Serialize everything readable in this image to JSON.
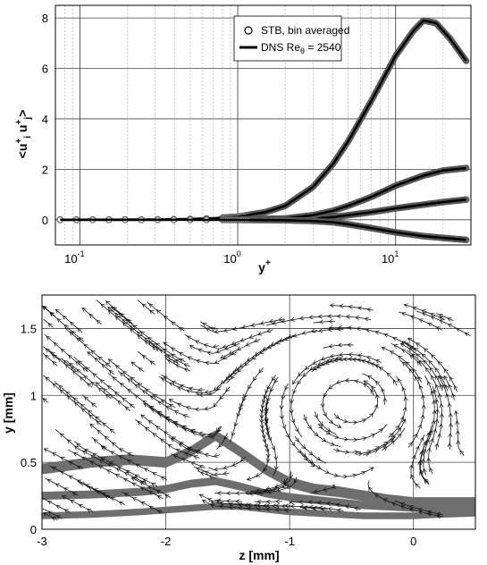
{
  "chart_data": [
    {
      "type": "scatter",
      "xlabel_base": "y",
      "xlabel_sup": "+",
      "ylabel": "<u_i^+ u_j^+>",
      "x_scale": "log",
      "xlim": [
        0.07,
        30
      ],
      "ylim": [
        -1,
        8.5
      ],
      "x_tick_values": [
        0.1,
        1,
        10
      ],
      "x_tick_labels": [
        "10",
        "10",
        "10"
      ],
      "x_tick_exponents": [
        "-1",
        "0",
        "1"
      ],
      "y_ticks": [
        0,
        2,
        4,
        6,
        8
      ],
      "y_tick_labels": [
        "0",
        "2",
        "4",
        "6",
        "8"
      ],
      "grid": true,
      "legend_position": "top-right",
      "legend": [
        {
          "label": "STB, bin averaged",
          "marker": "circle"
        },
        {
          "label_main": "DNS Re",
          "label_sub": "θ",
          "label_rest": " = 2540",
          "marker": "line"
        }
      ],
      "series": [
        {
          "key": "uu",
          "x": [
            0.075,
            0.15,
            0.23,
            0.3,
            0.4,
            0.5,
            0.7,
            1,
            1.5,
            2,
            3,
            4,
            5,
            7,
            10,
            13,
            15,
            18,
            22,
            28
          ],
          "y": [
            0,
            0.003,
            0.007,
            0.01,
            0.02,
            0.03,
            0.06,
            0.12,
            0.3,
            0.55,
            1.3,
            2.2,
            3.1,
            4.7,
            6.5,
            7.5,
            7.9,
            7.8,
            7.2,
            6.3
          ]
        },
        {
          "key": "vv",
          "x": [
            0.075,
            0.3,
            1,
            2,
            3,
            4,
            5,
            7,
            10,
            15,
            20,
            28
          ],
          "y": [
            0,
            0,
            0.005,
            0.02,
            0.05,
            0.1,
            0.18,
            0.3,
            0.45,
            0.6,
            0.7,
            0.8
          ]
        },
        {
          "key": "ww",
          "x": [
            0.075,
            0.3,
            1,
            2,
            3,
            4,
            5,
            7,
            10,
            15,
            20,
            28
          ],
          "y": [
            0,
            0,
            0.01,
            0.05,
            0.18,
            0.35,
            0.55,
            0.9,
            1.35,
            1.75,
            1.95,
            2.05
          ]
        },
        {
          "key": "uv",
          "x": [
            0.075,
            0.3,
            1,
            2,
            3,
            4,
            5,
            7,
            10,
            15,
            20,
            28
          ],
          "y": [
            0,
            0,
            -0.005,
            -0.02,
            -0.05,
            -0.1,
            -0.18,
            -0.33,
            -0.5,
            -0.65,
            -0.72,
            -0.8
          ]
        }
      ]
    },
    {
      "type": "vector-field",
      "xlabel": "z [mm]",
      "ylabel": "y [mm]",
      "xlim": [
        -3,
        0.5
      ],
      "ylim": [
        0,
        1.75
      ],
      "x_ticks": [
        -3,
        -2,
        -1,
        0
      ],
      "x_tick_labels": [
        "-3",
        "-2",
        "-1",
        "0"
      ],
      "y_ticks": [
        0,
        0.5,
        1,
        1.5
      ],
      "y_tick_labels": [
        "0",
        "0.5",
        "1",
        "1.5"
      ],
      "grid": true,
      "bands": [
        {
          "z": [
            -3,
            -2.6,
            -2.3,
            -2.0,
            -1.8,
            -1.6,
            -1.4,
            -1.2,
            -1.0,
            -0.8,
            -0.6,
            -0.4,
            -0.2,
            0,
            0.2,
            0.5
          ],
          "y_center": [
            0.45,
            0.5,
            0.52,
            0.5,
            0.58,
            0.7,
            0.58,
            0.45,
            0.35,
            0.3,
            0.28,
            0.25,
            0.22,
            0.2,
            0.2,
            0.2
          ],
          "thickness": 0.08
        },
        {
          "z": [
            -3,
            -2.6,
            -2.2,
            -2.0,
            -1.8,
            -1.6,
            -1.4,
            -1.2,
            -1.0,
            -0.8,
            -0.6,
            -0.4,
            -0.2,
            0,
            0.2,
            0.5
          ],
          "y_center": [
            0.25,
            0.26,
            0.28,
            0.3,
            0.34,
            0.36,
            0.32,
            0.27,
            0.24,
            0.22,
            0.2,
            0.18,
            0.17,
            0.16,
            0.16,
            0.17
          ],
          "thickness": 0.06
        },
        {
          "z": [
            -3,
            -2.6,
            -2.2,
            -1.9,
            -1.6,
            -1.4,
            -1.2,
            -1.0,
            -0.8,
            -0.6,
            -0.4,
            -0.2,
            0,
            0.2,
            0.5
          ],
          "y_center": [
            0.1,
            0.11,
            0.13,
            0.15,
            0.17,
            0.17,
            0.15,
            0.13,
            0.12,
            0.11,
            0.1,
            0.1,
            0.1,
            0.11,
            0.12
          ],
          "thickness": 0.05
        }
      ],
      "vortex_center": [
        -0.5,
        0.95
      ],
      "vortex_radius": 0.85
    }
  ]
}
